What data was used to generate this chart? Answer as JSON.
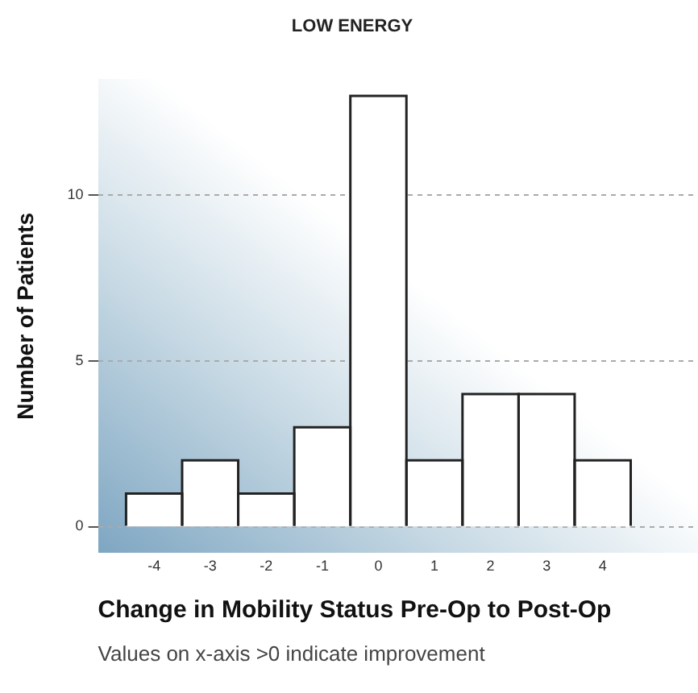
{
  "chart_data": {
    "type": "histogram",
    "title": "LOW ENERGY",
    "xlabel": "Change in Mobility Status Pre-Op to Post-Op",
    "ylabel": "Number of Patients",
    "bins": [
      -4.5,
      -3.5,
      -2.5,
      -1.5,
      -0.5,
      0.5,
      1.5,
      2.5,
      3.5,
      4.5
    ],
    "values": [
      1,
      2,
      1,
      3,
      13,
      2,
      4,
      4,
      2
    ],
    "color": "#ffffff",
    "xlim": [
      -5,
      5.7
    ],
    "xticks": [
      -4,
      -3,
      -2,
      -1,
      0,
      1,
      2,
      3,
      4
    ],
    "ylim": [
      -0.8,
      13.5
    ],
    "yticks": [
      0,
      5,
      10
    ],
    "grid": "y",
    "annotations": [
      "Values on x-axis >0 indicate improvement"
    ]
  }
}
